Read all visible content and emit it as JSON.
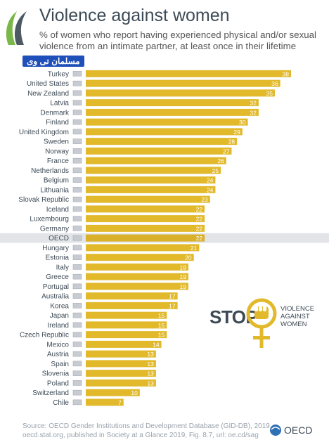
{
  "header": {
    "title": "Violence against women",
    "subtitle": "% of women who report having experienced physical and/or sexual violence from an intimate partner, at least once in their lifetime",
    "watermark": "مسلمان تی وی"
  },
  "colors": {
    "bar": "#e1b92b",
    "bar_highlight": "#d8b02a",
    "highlight_row": "#e2e4e7",
    "title": "#3d4a55",
    "emblem": "#e1b92b"
  },
  "chart_data": {
    "type": "bar",
    "orientation": "horizontal",
    "title": "Violence against women",
    "highlight": "OECD",
    "categories": [
      "Turkey",
      "United States",
      "New Zealand",
      "Latvia",
      "Denmark",
      "Finland",
      "United Kingdom",
      "Sweden",
      "Norway",
      "France",
      "Netherlands",
      "Belgium",
      "Lithuania",
      "Slovak Republic",
      "Iceland",
      "Luxembourg",
      "Germany",
      "OECD",
      "Hungary",
      "Estonia",
      "Italy",
      "Greece",
      "Portugal",
      "Australia",
      "Korea",
      "Japan",
      "Ireland",
      "Czech Republic",
      "Mexico",
      "Austria",
      "Spain",
      "Slovenia",
      "Poland",
      "Switzerland",
      "Chile"
    ],
    "values": [
      38,
      36,
      35,
      32,
      32,
      30,
      29,
      28,
      27,
      26,
      25,
      24,
      24,
      23,
      22,
      22,
      22,
      22,
      21,
      20,
      19,
      19,
      19,
      17,
      17,
      15,
      15,
      15,
      14,
      13,
      13,
      13,
      13,
      10,
      7
    ],
    "xlim": [
      0,
      38
    ],
    "grid": false,
    "legend": "none"
  },
  "campaign": {
    "stop_label": "STOP",
    "tagline": [
      "VIOLENCE",
      "AGAINST",
      "WOMEN"
    ]
  },
  "footer": {
    "source_lines": [
      "Source: OECD Gender Institutions and Development Database (GID-DB), 2019,",
      "oecd.stat.org, published in Society at a Glance 2019, Fig. 8.7, url: oe.cd/sag"
    ],
    "brand": "OECD"
  }
}
